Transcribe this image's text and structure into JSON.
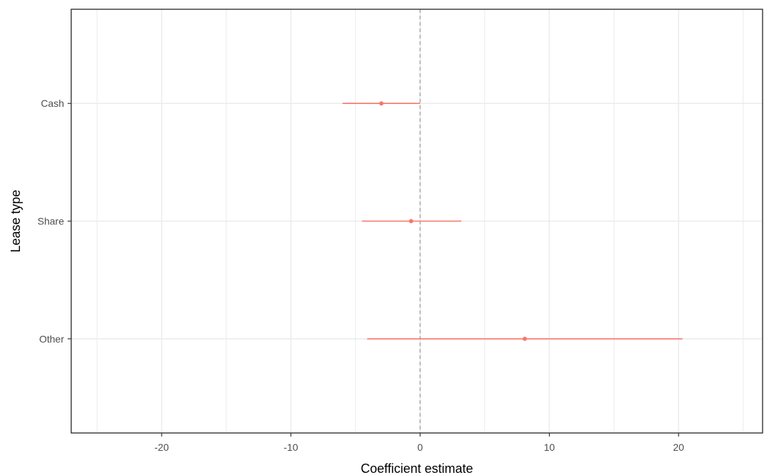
{
  "chart_data": {
    "type": "scatter",
    "orientation": "horizontal",
    "xlabel": "Coefficient estimate",
    "ylabel": "Lease type",
    "xlim": [
      -27,
      26.5
    ],
    "x_ticks": [
      -20,
      -10,
      0,
      10,
      20
    ],
    "x_minor_gridlines": [
      -25,
      -15,
      -5,
      5,
      15,
      25
    ],
    "categories": [
      "Cash",
      "Share",
      "Other"
    ],
    "points": [
      {
        "category": "Cash",
        "estimate": -3.0,
        "ci_low": -6.0,
        "ci_high": 0.0
      },
      {
        "category": "Share",
        "estimate": -0.7,
        "ci_low": -4.5,
        "ci_high": 3.2
      },
      {
        "category": "Other",
        "estimate": 8.1,
        "ci_low": -4.1,
        "ci_high": 20.3
      }
    ],
    "reference_line": {
      "x": 0,
      "style": "dashed"
    },
    "grid": true,
    "legend": "none",
    "colors": {
      "series": "#f8766d",
      "grid": "#ebebeb",
      "reference": "#999999",
      "panel_border": "#333333"
    }
  }
}
